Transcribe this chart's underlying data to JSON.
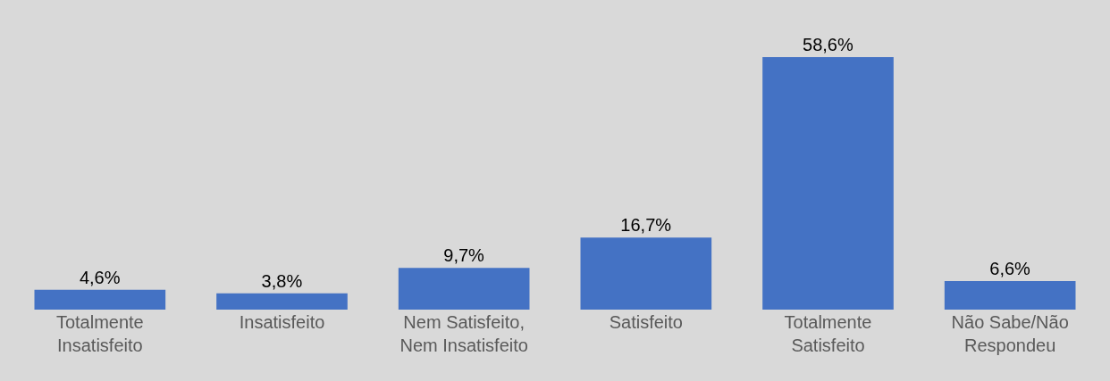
{
  "chart_data": {
    "type": "bar",
    "categories": [
      "Totalmente Insatisfeito",
      "Insatisfeito",
      "Nem Satisfeito, Nem Insatisfeito",
      "Satisfeito",
      "Totalmente Satisfeito",
      "Não Sabe/Não Respondeu"
    ],
    "values": [
      4.6,
      3.8,
      9.7,
      16.7,
      58.6,
      6.6
    ],
    "value_labels": [
      "4,6%",
      "3,8%",
      "9,7%",
      "16,7%",
      "58,6%",
      "6,6%"
    ],
    "color": "#4472c4",
    "grid": false,
    "legend": false
  }
}
